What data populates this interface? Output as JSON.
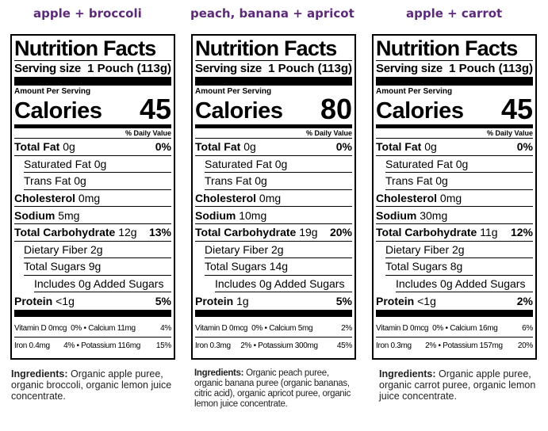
{
  "panels": [
    {
      "flavor": "apple + broccoli",
      "title": "Nutrition Facts",
      "serving_label": "Serving size",
      "serving_value": "1 Pouch (113g)",
      "amount_per_serving": "Amount Per Serving",
      "calories_label": "Calories",
      "calories": "45",
      "daily_value_header": "% Daily Value",
      "total_fat": {
        "label": "Total Fat",
        "amount": "0g",
        "dv": "0%"
      },
      "saturated_fat": {
        "label": "Saturated Fat 0g"
      },
      "trans_fat": {
        "label": "Trans Fat 0g"
      },
      "cholesterol": {
        "label": "Cholesterol",
        "amount": "0mg"
      },
      "sodium": {
        "label": "Sodium",
        "amount": "5mg"
      },
      "total_carbohydrate": {
        "label": "Total Carbohydrate",
        "amount": "12g",
        "dv": "13%"
      },
      "dietary_fiber": {
        "label": "Dietary Fiber 2g"
      },
      "total_sugars": {
        "label": "Total Sugars 9g"
      },
      "added_sugars": {
        "label": "Includes 0g Added Sugars"
      },
      "protein": {
        "label": "Protein",
        "amount": "<1g",
        "dv": "5%"
      },
      "vitamins": {
        "left1": "Vitamin D 0mcg",
        "dv1": "0%",
        "right1": "• Calcium 11mg",
        "rdv1": "4%",
        "left2": "Iron 0.4mg",
        "dv2": "4%",
        "right2": "• Potassium 116mg",
        "rdv2": "15%"
      },
      "ingredients_label": "Ingredients:",
      "ingredients_text": "Organic apple puree, organic broccoli, organic lemon juice concentrate."
    },
    {
      "flavor": "peach, banana + apricot",
      "title": "Nutrition Facts",
      "serving_label": "Serving size",
      "serving_value": "1 Pouch (113g)",
      "amount_per_serving": "Amount Per Serving",
      "calories_label": "Calories",
      "calories": "80",
      "daily_value_header": "% Daily Value",
      "total_fat": {
        "label": "Total Fat",
        "amount": "0g",
        "dv": "0%"
      },
      "saturated_fat": {
        "label": "Saturated Fat 0g"
      },
      "trans_fat": {
        "label": "Trans Fat 0g"
      },
      "cholesterol": {
        "label": "Cholesterol",
        "amount": "0mg"
      },
      "sodium": {
        "label": "Sodium",
        "amount": "10mg"
      },
      "total_carbohydrate": {
        "label": "Total Carbohydrate",
        "amount": "19g",
        "dv": "20%"
      },
      "dietary_fiber": {
        "label": "Dietary Fiber 2g"
      },
      "total_sugars": {
        "label": "Total Sugars 14g"
      },
      "added_sugars": {
        "label": "Includes 0g Added Sugars"
      },
      "protein": {
        "label": "Protein",
        "amount": "1g",
        "dv": "5%"
      },
      "vitamins": {
        "left1": "Vitamin D 0mcg",
        "dv1": "0%",
        "right1": "• Calcium 5mg",
        "rdv1": "2%",
        "left2": "Iron 0.3mg",
        "dv2": "2%",
        "right2": "• Potassium 300mg",
        "rdv2": "45%"
      },
      "ingredients_label": "Ingredients:",
      "ingredients_text": "Organic peach puree, organic banana puree (organic bananas, citric acid), organic apricot puree, organic lemon juice concentrate."
    },
    {
      "flavor": "apple + carrot",
      "title": "Nutrition Facts",
      "serving_label": "Serving size",
      "serving_value": "1 Pouch (113g)",
      "amount_per_serving": "Amount Per Serving",
      "calories_label": "Calories",
      "calories": "45",
      "daily_value_header": "% Daily Value",
      "total_fat": {
        "label": "Total Fat",
        "amount": "0g",
        "dv": "0%"
      },
      "saturated_fat": {
        "label": "Saturated Fat 0g"
      },
      "trans_fat": {
        "label": "Trans Fat 0g"
      },
      "cholesterol": {
        "label": "Cholesterol",
        "amount": "0mg"
      },
      "sodium": {
        "label": "Sodium",
        "amount": "30mg"
      },
      "total_carbohydrate": {
        "label": "Total Carbohydrate",
        "amount": "11g",
        "dv": "12%"
      },
      "dietary_fiber": {
        "label": "Dietary Fiber 2g"
      },
      "total_sugars": {
        "label": "Total Sugars 8g"
      },
      "added_sugars": {
        "label": "Includes 0g Added Sugars"
      },
      "protein": {
        "label": "Protein",
        "amount": "<1g",
        "dv": "2%"
      },
      "vitamins": {
        "left1": "Vitamin D 0mcg",
        "dv1": "0%",
        "right1": "• Calcium 16mg",
        "rdv1": "6%",
        "left2": "Iron 0.3mg",
        "dv2": "2%",
        "right2": "• Potassium 157mg",
        "rdv2": "20%"
      },
      "ingredients_label": "Ingredients:",
      "ingredients_text": "Organic apple puree, organic carrot puree, organic lemon juice concentrate."
    }
  ],
  "colors": {
    "flavor_title": "#5d2a7a",
    "text": "#000000",
    "background": "#ffffff"
  }
}
